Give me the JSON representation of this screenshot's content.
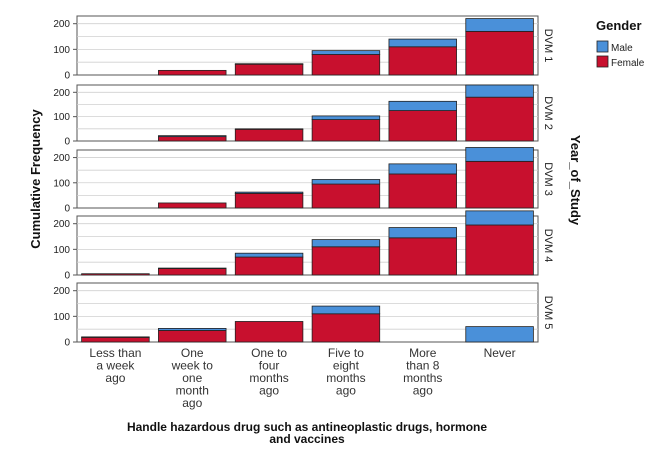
{
  "chart_data": {
    "type": "bar",
    "stacked": true,
    "faceted_by": "Year_of_Study",
    "categories": [
      [
        "Less than",
        "a week",
        "ago"
      ],
      [
        "One",
        "week to",
        "one",
        "month",
        "ago"
      ],
      [
        "One to",
        "four",
        "months",
        "ago"
      ],
      [
        "Five to",
        "eight",
        "months",
        "ago"
      ],
      [
        "More",
        "than 8",
        "months",
        "ago"
      ],
      [
        "Never"
      ]
    ],
    "xlabel": [
      "Handle hazardous drug such as antineoplastic drugs, hormone",
      "and vaccines"
    ],
    "ylabel": "Cumulative Frequency",
    "facet_label": "Year_of_Study",
    "legend_title": "Gender",
    "legend_position": "right",
    "yticks": [
      0,
      100,
      200
    ],
    "ylim": [
      0,
      230
    ],
    "colors": {
      "Female": "#c8102e",
      "Male": "#4a90d9"
    },
    "panels": [
      {
        "label": "DVM 1",
        "series": [
          {
            "name": "Female",
            "values": [
              0,
              18,
              42,
              80,
              110,
              170
            ]
          },
          {
            "name": "Male",
            "values": [
              0,
              0,
              2,
              15,
              30,
              50
            ]
          }
        ]
      },
      {
        "label": "DVM 2",
        "series": [
          {
            "name": "Female",
            "values": [
              0,
              18,
              48,
              88,
              125,
              180
            ]
          },
          {
            "name": "Male",
            "values": [
              0,
              4,
              2,
              15,
              38,
              50
            ]
          }
        ]
      },
      {
        "label": "DVM 3",
        "series": [
          {
            "name": "Female",
            "values": [
              0,
              20,
              58,
              95,
              135,
              185
            ]
          },
          {
            "name": "Male",
            "values": [
              0,
              0,
              5,
              18,
              40,
              55
            ]
          }
        ]
      },
      {
        "label": "DVM 4",
        "series": [
          {
            "name": "Female",
            "values": [
              5,
              25,
              70,
              110,
              145,
              195
            ]
          },
          {
            "name": "Male",
            "values": [
              0,
              2,
              15,
              28,
              40,
              55
            ]
          }
        ]
      },
      {
        "label": "DVM 5",
        "series": [
          {
            "name": "Female",
            "values": [
              18,
              45,
              80,
              110,
              0,
              0
            ]
          },
          {
            "name": "Male",
            "values": [
              2,
              8,
              0,
              30,
              0,
              60
            ]
          }
        ]
      }
    ]
  }
}
